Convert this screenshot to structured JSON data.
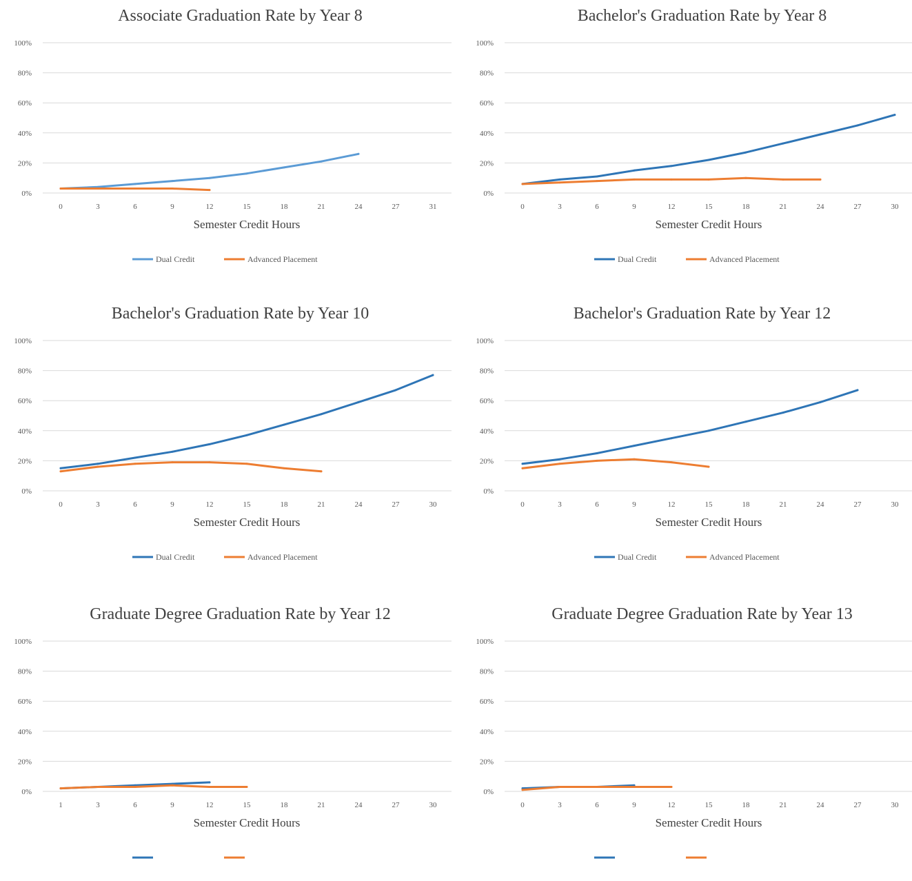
{
  "chart_data": [
    {
      "type": "line",
      "title": "Associate Graduation Rate by Year 8",
      "xlabel": "Semester Credit Hours",
      "ylabel": "",
      "x_ticks": [
        "0",
        "3",
        "6",
        "9",
        "12",
        "15",
        "18",
        "21",
        "24",
        "27",
        "31"
      ],
      "y_ticks": [
        "0%",
        "20%",
        "40%",
        "60%",
        "80%",
        "100%"
      ],
      "ylim": [
        0,
        100
      ],
      "grid": true,
      "legend_position": "bottom",
      "series": [
        {
          "name": "Dual Credit",
          "color": "#5b9bd5",
          "x": [
            0,
            3,
            6,
            9,
            12,
            15,
            18,
            21,
            24
          ],
          "y": [
            3,
            4,
            6,
            8,
            10,
            13,
            17,
            21,
            26
          ]
        },
        {
          "name": "Advanced Placement",
          "color": "#ed7d31",
          "x": [
            0,
            3,
            6,
            9,
            12
          ],
          "y": [
            3,
            3,
            3,
            3,
            2
          ]
        }
      ]
    },
    {
      "type": "line",
      "title": "Bachelor's Graduation Rate by Year 8",
      "xlabel": "Semester Credit Hours",
      "ylabel": "",
      "x_ticks": [
        "0",
        "3",
        "6",
        "9",
        "12",
        "15",
        "18",
        "21",
        "24",
        "27",
        "30"
      ],
      "y_ticks": [
        "0%",
        "20%",
        "40%",
        "60%",
        "80%",
        "100%"
      ],
      "ylim": [
        0,
        100
      ],
      "grid": true,
      "legend_position": "bottom",
      "series": [
        {
          "name": "Dual Credit",
          "color": "#2e75b6",
          "x": [
            0,
            3,
            6,
            9,
            12,
            15,
            18,
            21,
            24,
            27,
            30
          ],
          "y": [
            6,
            9,
            11,
            15,
            18,
            22,
            27,
            33,
            39,
            45,
            52
          ]
        },
        {
          "name": "Advanced Placement",
          "color": "#ed7d31",
          "x": [
            0,
            3,
            6,
            9,
            12,
            15,
            18,
            21,
            24
          ],
          "y": [
            6,
            7,
            8,
            9,
            9,
            9,
            10,
            9,
            9
          ]
        }
      ]
    },
    {
      "type": "line",
      "title": "Bachelor's Graduation Rate by Year 10",
      "xlabel": "Semester Credit Hours",
      "ylabel": "",
      "x_ticks": [
        "0",
        "3",
        "6",
        "9",
        "12",
        "15",
        "18",
        "21",
        "24",
        "27",
        "30"
      ],
      "y_ticks": [
        "0%",
        "20%",
        "40%",
        "60%",
        "80%",
        "100%"
      ],
      "ylim": [
        0,
        100
      ],
      "grid": true,
      "legend_position": "bottom",
      "series": [
        {
          "name": "Dual Credit",
          "color": "#2e75b6",
          "x": [
            0,
            3,
            6,
            9,
            12,
            15,
            18,
            21,
            24,
            27,
            30
          ],
          "y": [
            15,
            18,
            22,
            26,
            31,
            37,
            44,
            51,
            59,
            67,
            77
          ]
        },
        {
          "name": "Advanced Placement",
          "color": "#ed7d31",
          "x": [
            0,
            3,
            6,
            9,
            12,
            15,
            18,
            21
          ],
          "y": [
            13,
            16,
            18,
            19,
            19,
            18,
            15,
            13
          ]
        }
      ]
    },
    {
      "type": "line",
      "title": "Bachelor's Graduation Rate by Year 12",
      "xlabel": "Semester Credit Hours",
      "ylabel": "",
      "x_ticks": [
        "0",
        "3",
        "6",
        "9",
        "12",
        "15",
        "18",
        "21",
        "24",
        "27",
        "30"
      ],
      "y_ticks": [
        "0%",
        "20%",
        "40%",
        "60%",
        "80%",
        "100%"
      ],
      "ylim": [
        0,
        100
      ],
      "grid": true,
      "legend_position": "bottom",
      "series": [
        {
          "name": "Dual Credit",
          "color": "#2e75b6",
          "x": [
            0,
            3,
            6,
            9,
            12,
            15,
            18,
            21,
            24,
            27
          ],
          "y": [
            18,
            21,
            25,
            30,
            35,
            40,
            46,
            52,
            59,
            67
          ]
        },
        {
          "name": "Advanced Placement",
          "color": "#ed7d31",
          "x": [
            0,
            3,
            6,
            9,
            12,
            15
          ],
          "y": [
            15,
            18,
            20,
            21,
            19,
            16
          ]
        }
      ]
    },
    {
      "type": "line",
      "title": "Graduate Degree Graduation Rate by Year 12",
      "xlabel": "Semester Credit Hours",
      "ylabel": "",
      "x_ticks": [
        "1",
        "3",
        "6",
        "9",
        "12",
        "15",
        "18",
        "21",
        "24",
        "27",
        "30"
      ],
      "y_ticks": [
        "0%",
        "20%",
        "40%",
        "60%",
        "80%",
        "100%"
      ],
      "ylim": [
        0,
        100
      ],
      "grid": true,
      "legend_position": "bottom",
      "series": [
        {
          "name": "",
          "color": "#2e75b6",
          "x": [
            0,
            3,
            6,
            9,
            12
          ],
          "y": [
            2,
            3,
            4,
            5,
            6
          ]
        },
        {
          "name": "",
          "color": "#ed7d31",
          "x": [
            0,
            3,
            6,
            9,
            12,
            15
          ],
          "y": [
            2,
            3,
            3,
            4,
            3,
            3
          ]
        }
      ]
    },
    {
      "type": "line",
      "title": "Graduate Degree Graduation Rate by Year 13",
      "xlabel": "Semester Credit Hours",
      "ylabel": "",
      "x_ticks": [
        "0",
        "3",
        "6",
        "9",
        "12",
        "15",
        "18",
        "21",
        "24",
        "27",
        "30"
      ],
      "y_ticks": [
        "0%",
        "20%",
        "40%",
        "60%",
        "80%",
        "100%"
      ],
      "ylim": [
        0,
        100
      ],
      "grid": true,
      "legend_position": "bottom",
      "series": [
        {
          "name": "",
          "color": "#2e75b6",
          "x": [
            0,
            3,
            6,
            9
          ],
          "y": [
            2,
            3,
            3,
            4
          ]
        },
        {
          "name": "",
          "color": "#ed7d31",
          "x": [
            0,
            3,
            6,
            9,
            12
          ],
          "y": [
            1,
            3,
            3,
            3,
            3
          ]
        }
      ]
    }
  ]
}
